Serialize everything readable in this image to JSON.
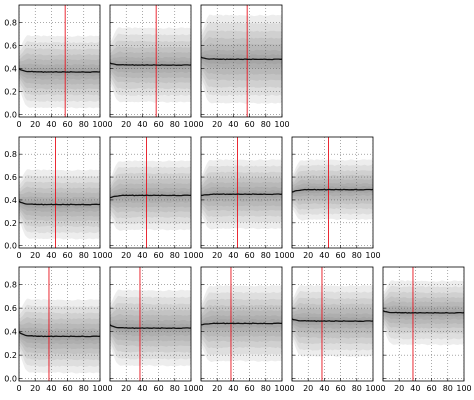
{
  "chart_data": {
    "type": "line",
    "grid": true,
    "legend": "none",
    "colors": {
      "median": "#111111",
      "marker": "#e8121e",
      "band": "#8c8c8c",
      "frame": "#000000"
    },
    "x_ticks": [
      0,
      20,
      40,
      60,
      80,
      100
    ],
    "rows": [
      {
        "y_ticks": [
          0.0,
          0.2,
          0.4,
          0.6,
          0.8
        ],
        "ylim": [
          -0.02,
          0.95
        ],
        "panels": [
          {
            "median": 0.37,
            "start": 0.4,
            "spread": 0.31,
            "vline": 57
          },
          {
            "median": 0.43,
            "start": 0.45,
            "spread": 0.32,
            "vline": 57
          },
          {
            "median": 0.48,
            "start": 0.5,
            "spread": 0.38,
            "vline": 57
          }
        ]
      },
      {
        "y_ticks": [
          0.0,
          0.2,
          0.4,
          0.6,
          0.8
        ],
        "ylim": [
          -0.02,
          0.95
        ],
        "panels": [
          {
            "median": 0.36,
            "start": 0.39,
            "spread": 0.3,
            "vline": 45
          },
          {
            "median": 0.44,
            "start": 0.42,
            "spread": 0.3,
            "vline": 45
          },
          {
            "median": 0.45,
            "start": 0.44,
            "spread": 0.3,
            "vline": 45
          },
          {
            "median": 0.49,
            "start": 0.47,
            "spread": 0.26,
            "vline": 45
          }
        ]
      },
      {
        "y_ticks": [
          0.0,
          0.2,
          0.4,
          0.6,
          0.8
        ],
        "ylim": [
          -0.02,
          0.95
        ],
        "panels": [
          {
            "median": 0.36,
            "start": 0.4,
            "spread": 0.31,
            "vline": 37
          },
          {
            "median": 0.43,
            "start": 0.46,
            "spread": 0.32,
            "vline": 37
          },
          {
            "median": 0.47,
            "start": 0.46,
            "spread": 0.32,
            "vline": 37
          },
          {
            "median": 0.49,
            "start": 0.51,
            "spread": 0.3,
            "vline": 37
          },
          {
            "median": 0.56,
            "start": 0.58,
            "spread": 0.27,
            "vline": 37
          }
        ]
      }
    ]
  }
}
